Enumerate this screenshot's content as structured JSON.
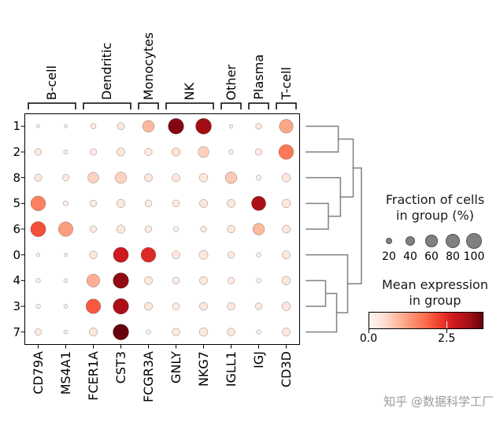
{
  "figure": {
    "watermark": "知乎 @数据科学工厂"
  },
  "legend_fraction": {
    "title_lines": [
      "Fraction of cells",
      "in group (%)"
    ],
    "sizes": [
      "20",
      "40",
      "60",
      "80",
      "100"
    ],
    "size_values": [
      20,
      40,
      60,
      80,
      100
    ],
    "dot_color": "#808080"
  },
  "legend_expression": {
    "title_lines": [
      "Mean expression",
      "in group"
    ],
    "tick_labels": [
      "0.0",
      "2.5"
    ],
    "tick_positions": [
      0.0,
      0.68
    ]
  },
  "chart_data": {
    "type": "dotplot",
    "genes": [
      "CD79A",
      "MS4A1",
      "FCER1A",
      "CST3",
      "FCGR3A",
      "GNLY",
      "NKG7",
      "IGLL1",
      "IGJ",
      "CD3D"
    ],
    "clusters": [
      "1",
      "2",
      "8",
      "5",
      "6",
      "0",
      "4",
      "3",
      "7"
    ],
    "gene_groups": [
      {
        "label": "B-cell",
        "start": 0,
        "end": 1
      },
      {
        "label": "Dendritic",
        "start": 2,
        "end": 3
      },
      {
        "label": "Monocytes",
        "start": 4,
        "end": 4
      },
      {
        "label": "NK",
        "start": 5,
        "end": 6
      },
      {
        "label": "Other",
        "start": 7,
        "end": 7
      },
      {
        "label": "Plasma",
        "start": 8,
        "end": 8
      },
      {
        "label": "T-cell",
        "start": 9,
        "end": 9
      }
    ],
    "fraction_pct": [
      [
        4,
        4,
        12,
        22,
        55,
        97,
        99,
        5,
        14,
        76
      ],
      [
        18,
        7,
        18,
        28,
        22,
        28,
        48,
        8,
        18,
        88
      ],
      [
        22,
        18,
        48,
        52,
        25,
        25,
        30,
        55,
        10,
        30
      ],
      [
        88,
        10,
        18,
        28,
        20,
        20,
        26,
        26,
        82,
        30
      ],
      [
        92,
        85,
        18,
        28,
        18,
        10,
        14,
        24,
        55,
        26
      ],
      [
        5,
        4,
        24,
        92,
        88,
        26,
        32,
        18,
        8,
        26
      ],
      [
        8,
        6,
        68,
        97,
        26,
        20,
        26,
        18,
        8,
        30
      ],
      [
        8,
        6,
        86,
        97,
        26,
        20,
        26,
        24,
        18,
        30
      ],
      [
        18,
        6,
        28,
        99,
        8,
        24,
        30,
        24,
        8,
        26
      ]
    ],
    "mean_expression": [
      [
        0.1,
        0.1,
        0.2,
        0.3,
        0.9,
        3.3,
        3.1,
        0.1,
        0.2,
        1.1
      ],
      [
        0.2,
        0.1,
        0.2,
        0.3,
        0.2,
        0.4,
        0.6,
        0.1,
        0.2,
        1.6
      ],
      [
        0.3,
        0.2,
        0.6,
        0.6,
        0.3,
        0.3,
        0.3,
        0.7,
        0.1,
        0.3
      ],
      [
        1.5,
        0.1,
        0.2,
        0.3,
        0.2,
        0.2,
        0.3,
        0.3,
        3.0,
        0.3
      ],
      [
        2.0,
        1.2,
        0.2,
        0.3,
        0.2,
        0.1,
        0.2,
        0.3,
        0.9,
        0.3
      ],
      [
        0.1,
        0.1,
        0.3,
        2.6,
        2.4,
        0.3,
        0.3,
        0.2,
        0.1,
        0.3
      ],
      [
        0.1,
        0.1,
        1.0,
        3.2,
        0.3,
        0.2,
        0.3,
        0.2,
        0.1,
        0.3
      ],
      [
        0.1,
        0.1,
        1.9,
        3.0,
        0.3,
        0.2,
        0.3,
        0.3,
        0.2,
        0.3
      ],
      [
        0.2,
        0.1,
        0.3,
        3.5,
        0.1,
        0.3,
        0.3,
        0.3,
        0.1,
        0.3
      ]
    ],
    "vmax": 3.5,
    "colormap": [
      "#fff5f0",
      "#fee0d2",
      "#fcbba1",
      "#fc9272",
      "#fb6a4a",
      "#ef3b2c",
      "#cb181d",
      "#a50f15",
      "#67000d"
    ],
    "dendrogram": {
      "merges": [
        {
          "id": "m1",
          "a": "1",
          "b": "2",
          "depth": 0.58
        },
        {
          "id": "m2",
          "a": "5",
          "b": "6",
          "depth": 0.4
        },
        {
          "id": "m3",
          "a": "8",
          "b": "m2",
          "depth": 0.62
        },
        {
          "id": "m4",
          "a": "m1",
          "b": "m3",
          "depth": 0.85
        },
        {
          "id": "m5",
          "a": "4",
          "b": "3",
          "depth": 0.35
        },
        {
          "id": "m6",
          "a": "m5",
          "b": "7",
          "depth": 0.55
        },
        {
          "id": "m7",
          "a": "0",
          "b": "m6",
          "depth": 0.75
        },
        {
          "id": "root",
          "a": "m4",
          "b": "m7",
          "depth": 1.0
        }
      ]
    }
  }
}
